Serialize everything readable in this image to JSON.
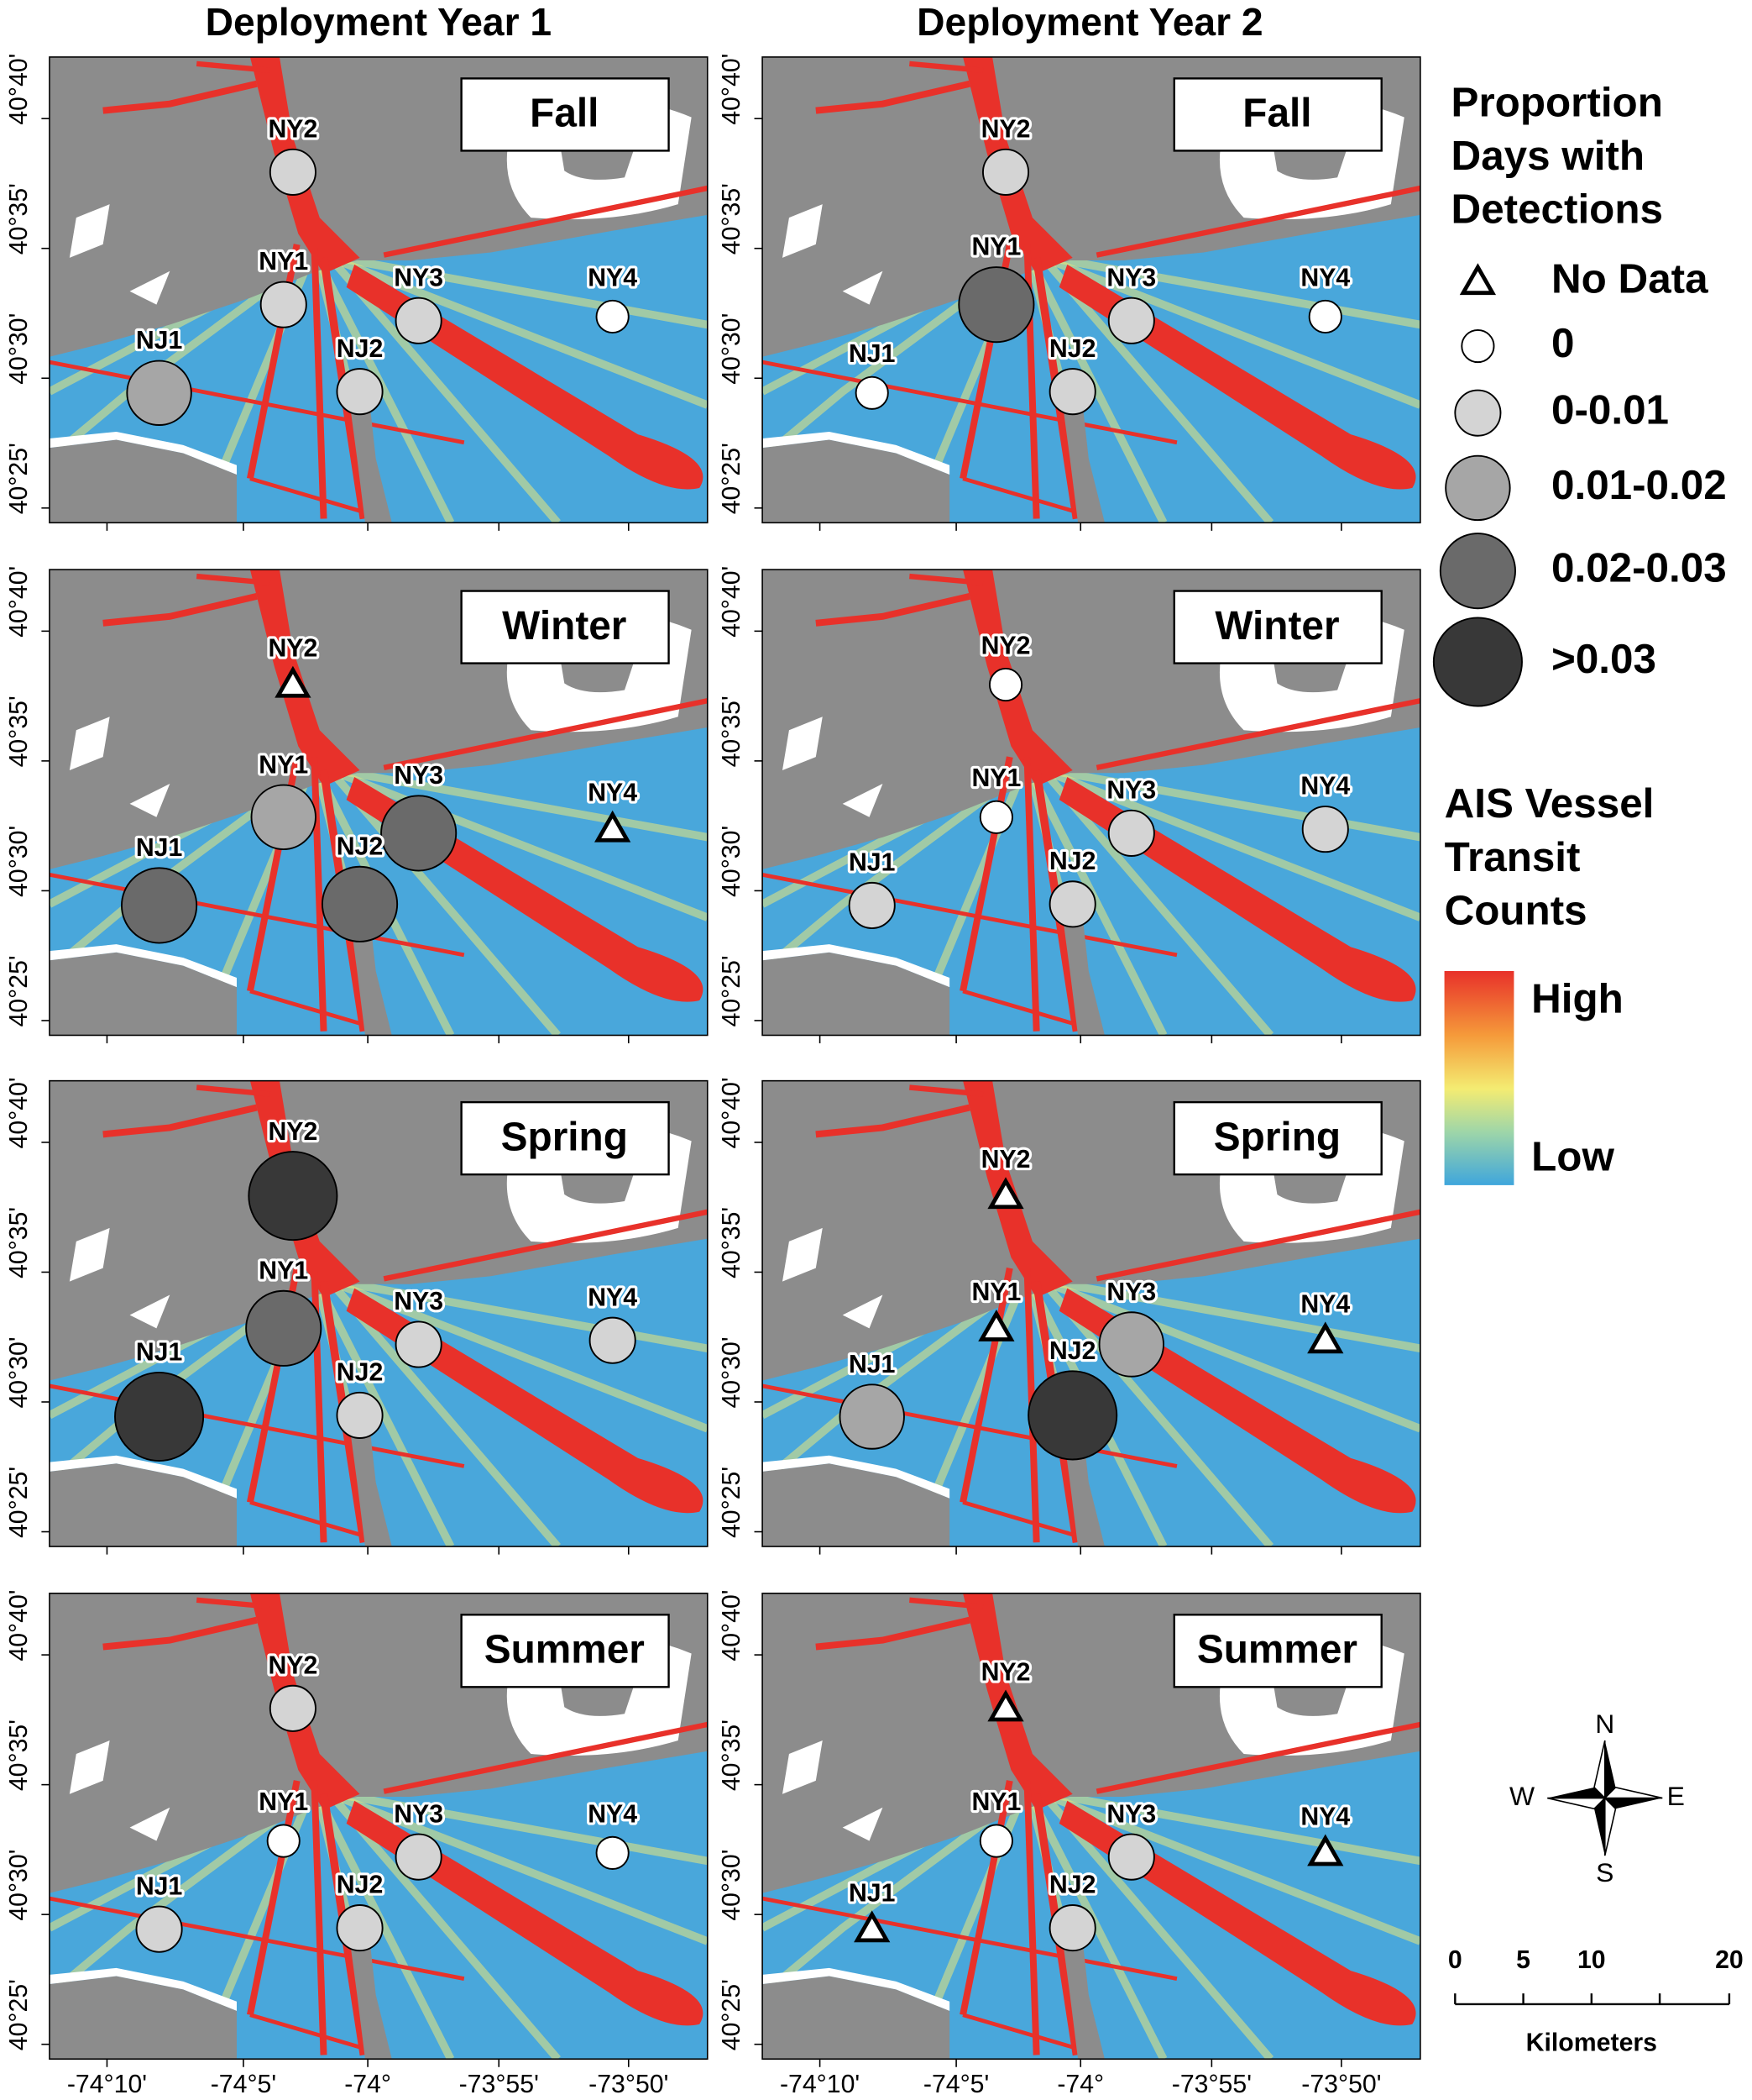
{
  "columns": [
    "Deployment Year 1",
    "Deployment Year 2"
  ],
  "panels": [
    {
      "season": "Fall",
      "stations": [
        {
          "label": "NY2",
          "detection": "0-0.01"
        },
        {
          "label": "NY1",
          "detection": "0-0.01"
        },
        {
          "label": "NY3",
          "detection": "0-0.01"
        },
        {
          "label": "NY4",
          "detection": "0"
        },
        {
          "label": "NJ1",
          "detection": "0.01-0.02"
        },
        {
          "label": "NJ2",
          "detection": "0-0.01"
        }
      ]
    },
    {
      "season": "Fall",
      "stations": [
        {
          "label": "NY2",
          "detection": "0-0.01"
        },
        {
          "label": "NY1",
          "detection": "0.02-0.03"
        },
        {
          "label": "NY3",
          "detection": "0-0.01"
        },
        {
          "label": "NY4",
          "detection": "0"
        },
        {
          "label": "NJ1",
          "detection": "0"
        },
        {
          "label": "NJ2",
          "detection": "0-0.01"
        }
      ]
    },
    {
      "season": "Winter",
      "stations": [
        {
          "label": "NY2",
          "detection": "No Data"
        },
        {
          "label": "NY1",
          "detection": "0.01-0.02"
        },
        {
          "label": "NY3",
          "detection": "0.02-0.03"
        },
        {
          "label": "NY4",
          "detection": "No Data"
        },
        {
          "label": "NJ1",
          "detection": "0.02-0.03"
        },
        {
          "label": "NJ2",
          "detection": "0.02-0.03"
        }
      ]
    },
    {
      "season": "Winter",
      "stations": [
        {
          "label": "NY2",
          "detection": "0"
        },
        {
          "label": "NY1",
          "detection": "0"
        },
        {
          "label": "NY3",
          "detection": "0-0.01"
        },
        {
          "label": "NY4",
          "detection": "0-0.01"
        },
        {
          "label": "NJ1",
          "detection": "0-0.01"
        },
        {
          "label": "NJ2",
          "detection": "0-0.01"
        }
      ]
    },
    {
      "season": "Spring",
      "stations": [
        {
          "label": "NY2",
          "detection": ">0.03"
        },
        {
          "label": "NY1",
          "detection": "0.02-0.03"
        },
        {
          "label": "NY3",
          "detection": "0-0.01"
        },
        {
          "label": "NY4",
          "detection": "0-0.01"
        },
        {
          "label": "NJ1",
          "detection": ">0.03"
        },
        {
          "label": "NJ2",
          "detection": "0-0.01"
        }
      ]
    },
    {
      "season": "Spring",
      "stations": [
        {
          "label": "NY2",
          "detection": "No Data"
        },
        {
          "label": "NY1",
          "detection": "No Data"
        },
        {
          "label": "NY3",
          "detection": "0.01-0.02"
        },
        {
          "label": "NY4",
          "detection": "No Data"
        },
        {
          "label": "NJ1",
          "detection": "0.01-0.02"
        },
        {
          "label": "NJ2",
          "detection": ">0.03"
        }
      ]
    },
    {
      "season": "Summer",
      "stations": [
        {
          "label": "NY2",
          "detection": "0-0.01"
        },
        {
          "label": "NY1",
          "detection": "0"
        },
        {
          "label": "NY3",
          "detection": "0-0.01"
        },
        {
          "label": "NY4",
          "detection": "0"
        },
        {
          "label": "NJ1",
          "detection": "0-0.01"
        },
        {
          "label": "NJ2",
          "detection": "0-0.01"
        }
      ]
    },
    {
      "season": "Summer",
      "stations": [
        {
          "label": "NY2",
          "detection": "No Data"
        },
        {
          "label": "NY1",
          "detection": "0"
        },
        {
          "label": "NY3",
          "detection": "0-0.01"
        },
        {
          "label": "NY4",
          "detection": "No Data"
        },
        {
          "label": "NJ1",
          "detection": "No Data"
        },
        {
          "label": "NJ2",
          "detection": "0-0.01"
        }
      ]
    }
  ],
  "lat_ticks": [
    "40°40'",
    "40°35'",
    "40°30'",
    "40°25'"
  ],
  "lon_ticks": [
    "-74°10'",
    "-74°5'",
    "-74°",
    "-73°55'",
    "-73°50'"
  ],
  "legend": {
    "title_lines": [
      "Proportion",
      "Days with",
      "Detections"
    ],
    "items": [
      "No Data",
      "0",
      "0-0.01",
      "0.01-0.02",
      "0.02-0.03",
      ">0.03"
    ]
  },
  "colorbar": {
    "title_lines": [
      "AIS Vessel",
      "Transit",
      "Counts"
    ],
    "high": "High",
    "low": "Low"
  },
  "compass": {
    "n": "N",
    "s": "S",
    "e": "E",
    "w": "W"
  },
  "scalebar": {
    "labels": [
      "0",
      "5",
      "10",
      "20"
    ],
    "unit": "Kilometers"
  }
}
